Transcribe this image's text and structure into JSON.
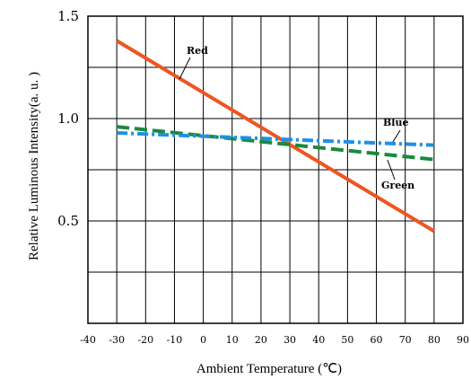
{
  "chart_data": {
    "type": "line",
    "xlabel": "Ambient Temperature (℃)",
    "ylabel": "Relative Luminous Intensity(a. u. )",
    "xlim": [
      -40,
      90
    ],
    "ylim": [
      0,
      1.5
    ],
    "x_ticks": [
      -40,
      -30,
      -20,
      -10,
      0,
      10,
      20,
      30,
      40,
      50,
      60,
      70,
      80,
      90
    ],
    "x_tick_labels": [
      "-40",
      "-30",
      "-20",
      "-10",
      "0",
      "10",
      "20",
      "30",
      "40",
      "50",
      "60",
      "70",
      "80",
      "90"
    ],
    "y_ticks": [
      0.5,
      1.0,
      1.5
    ],
    "y_tick_labels": [
      "0.5",
      "1.0",
      "1.5"
    ],
    "grid": true,
    "series": [
      {
        "name": "Red",
        "color": "#ee5522",
        "style": "solid",
        "x": [
          -30,
          80
        ],
        "y": [
          1.38,
          0.45
        ]
      },
      {
        "name": "Green",
        "color": "#1a8a3c",
        "style": "dashed",
        "x": [
          -30,
          80
        ],
        "y": [
          0.96,
          0.8
        ]
      },
      {
        "name": "Blue",
        "color": "#1e90e6",
        "style": "dashdot",
        "x": [
          -30,
          80
        ],
        "y": [
          0.93,
          0.87
        ]
      }
    ]
  }
}
